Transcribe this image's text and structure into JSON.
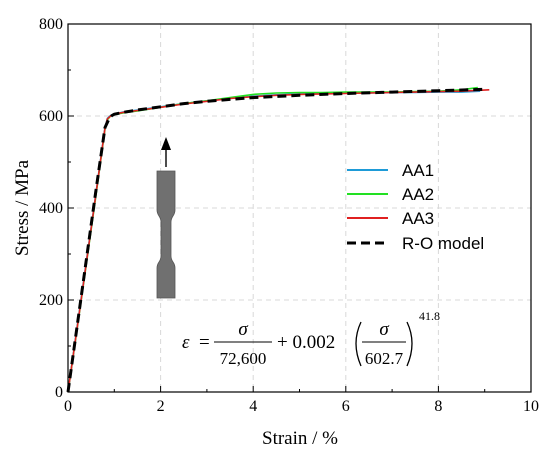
{
  "chart_data": {
    "type": "line",
    "xlabel": "Strain / %",
    "ylabel": "Stress / MPa",
    "xlim": [
      0,
      10
    ],
    "ylim": [
      0,
      800
    ],
    "x_ticks": [
      0,
      2,
      4,
      6,
      8,
      10
    ],
    "y_ticks": [
      0,
      200,
      400,
      600,
      800
    ],
    "grid": true,
    "legend_position": "right",
    "series": [
      {
        "name": "AA1",
        "color": "#1E9BD7",
        "style": "solid",
        "x": [
          0,
          0.3,
          0.6,
          0.8,
          0.85,
          0.92,
          1.0,
          1.2,
          1.5,
          2.0,
          2.5,
          3.0,
          3.5,
          4.0,
          4.5,
          5.0,
          5.5,
          6.0,
          6.5,
          7.0,
          7.5,
          8.0,
          8.5,
          8.9
        ],
        "y": [
          0,
          215,
          430,
          575,
          595,
          601,
          604,
          609,
          613,
          620,
          627,
          633,
          638,
          643,
          646,
          648,
          649,
          650,
          650,
          651,
          651,
          652,
          652,
          654
        ]
      },
      {
        "name": "AA2",
        "color": "#22E022",
        "style": "solid",
        "x": [
          0,
          0.3,
          0.6,
          0.8,
          0.85,
          0.92,
          1.0,
          1.2,
          1.5,
          2.0,
          2.5,
          3.0,
          3.5,
          4.0,
          4.5,
          5.0,
          5.5,
          6.0,
          6.5,
          7.0,
          7.5,
          8.0,
          8.5,
          8.85
        ],
        "y": [
          0,
          210,
          425,
          572,
          592,
          600,
          603,
          607,
          611,
          619,
          627,
          633,
          640,
          647,
          650,
          651,
          651,
          652,
          652,
          652,
          653,
          654,
          657,
          662
        ]
      },
      {
        "name": "AA3",
        "color": "#E02020",
        "style": "solid",
        "x": [
          0,
          0.3,
          0.6,
          0.8,
          0.85,
          0.92,
          1.0,
          1.2,
          1.5,
          2.0,
          2.5,
          3.0,
          3.5,
          4.0,
          4.5,
          5.0,
          5.5,
          6.0,
          6.5,
          7.0,
          7.5,
          8.0,
          8.5,
          9.1
        ],
        "y": [
          0,
          212,
          428,
          574,
          594,
          600,
          604,
          608,
          612,
          619,
          626,
          632,
          638,
          642,
          645,
          647,
          648,
          649,
          650,
          651,
          652,
          653,
          654,
          657
        ]
      },
      {
        "name": "R-O model",
        "color": "#000000",
        "style": "dashed",
        "x": [
          0,
          0.3,
          0.6,
          0.8,
          0.9,
          0.95,
          1.0,
          1.2,
          1.5,
          2.0,
          2.5,
          3.0,
          3.5,
          4.0,
          5.0,
          6.0,
          7.0,
          8.0,
          9.0
        ],
        "y": [
          0,
          218,
          436,
          575,
          597,
          601,
          604,
          608,
          613,
          620,
          627,
          632,
          636,
          640,
          645,
          649,
          652,
          655,
          658
        ]
      }
    ],
    "equation": {
      "lhs": "ε",
      "eq": "=",
      "sigma": "σ",
      "E": "72,600",
      "plus": "+ 0.002",
      "sigma_y": "602.7",
      "exponent": "41.8"
    },
    "annotation": "tensile specimen icon with arrow"
  }
}
